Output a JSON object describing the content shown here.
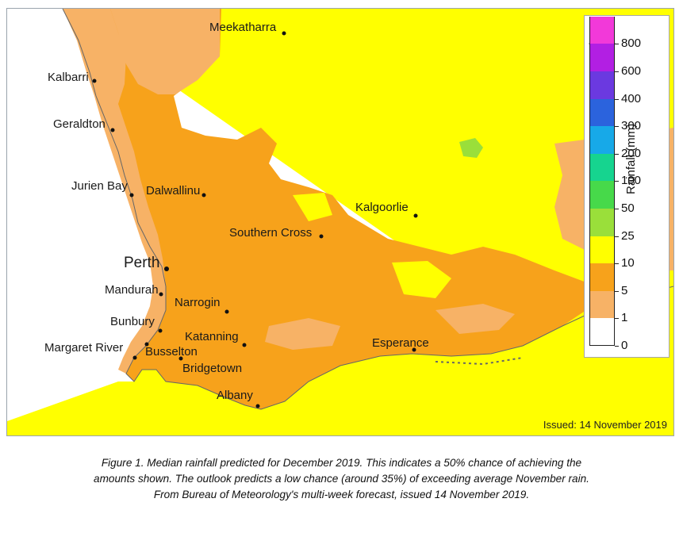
{
  "map": {
    "issued": "Issued: 14 November 2019",
    "cities": [
      {
        "name": "Meekatharra",
        "big": false
      },
      {
        "name": "Kalbarri",
        "big": false
      },
      {
        "name": "Geraldton",
        "big": false
      },
      {
        "name": "Jurien Bay",
        "big": false
      },
      {
        "name": "Dalwallinu",
        "big": false
      },
      {
        "name": "Kalgoorlie",
        "big": false
      },
      {
        "name": "Southern Cross",
        "big": false
      },
      {
        "name": "Perth",
        "big": true
      },
      {
        "name": "Mandurah",
        "big": false
      },
      {
        "name": "Narrogin",
        "big": false
      },
      {
        "name": "Bunbury",
        "big": false
      },
      {
        "name": "Katanning",
        "big": false
      },
      {
        "name": "Esperance",
        "big": false
      },
      {
        "name": "Margaret River",
        "big": false
      },
      {
        "name": "Busselton",
        "big": false
      },
      {
        "name": "Bridgetown",
        "big": false
      },
      {
        "name": "Albany",
        "big": false
      }
    ],
    "colors": {
      "ocean": "#ffffff",
      "rain_0_1": "#ffffff",
      "rain_1_5": "#f7b266",
      "rain_5_10": "#f7a21b",
      "rain_10_25": "#ffff00",
      "rain_25_50": "#9adf3a",
      "coast": "#666666"
    }
  },
  "legend": {
    "title": "Rainfall (mm)",
    "bins": [
      {
        "label": "0",
        "color": "#ffffff"
      },
      {
        "label": "1",
        "color": "#f7b266"
      },
      {
        "label": "5",
        "color": "#f7a21b"
      },
      {
        "label": "10",
        "color": "#ffff00"
      },
      {
        "label": "25",
        "color": "#9adf3a"
      },
      {
        "label": "50",
        "color": "#47d94a"
      },
      {
        "label": "100",
        "color": "#16d48f"
      },
      {
        "label": "200",
        "color": "#17a9e8"
      },
      {
        "label": "300",
        "color": "#2b63dd"
      },
      {
        "label": "400",
        "color": "#6b39e0"
      },
      {
        "label": "600",
        "color": "#b21fe3"
      },
      {
        "label": "800",
        "color": "#f239d9"
      }
    ],
    "overflow_color": "#ff6fa3"
  },
  "caption": {
    "line1": "Figure 1. Median rainfall predicted for December 2019. This indicates a 50% chance of achieving the",
    "line2": "amounts shown. The outlook predicts a low chance (around 35%) of exceeding average November rain.",
    "line3": "From Bureau of Meteorology's multi-week forecast, issued 14 November 2019."
  }
}
